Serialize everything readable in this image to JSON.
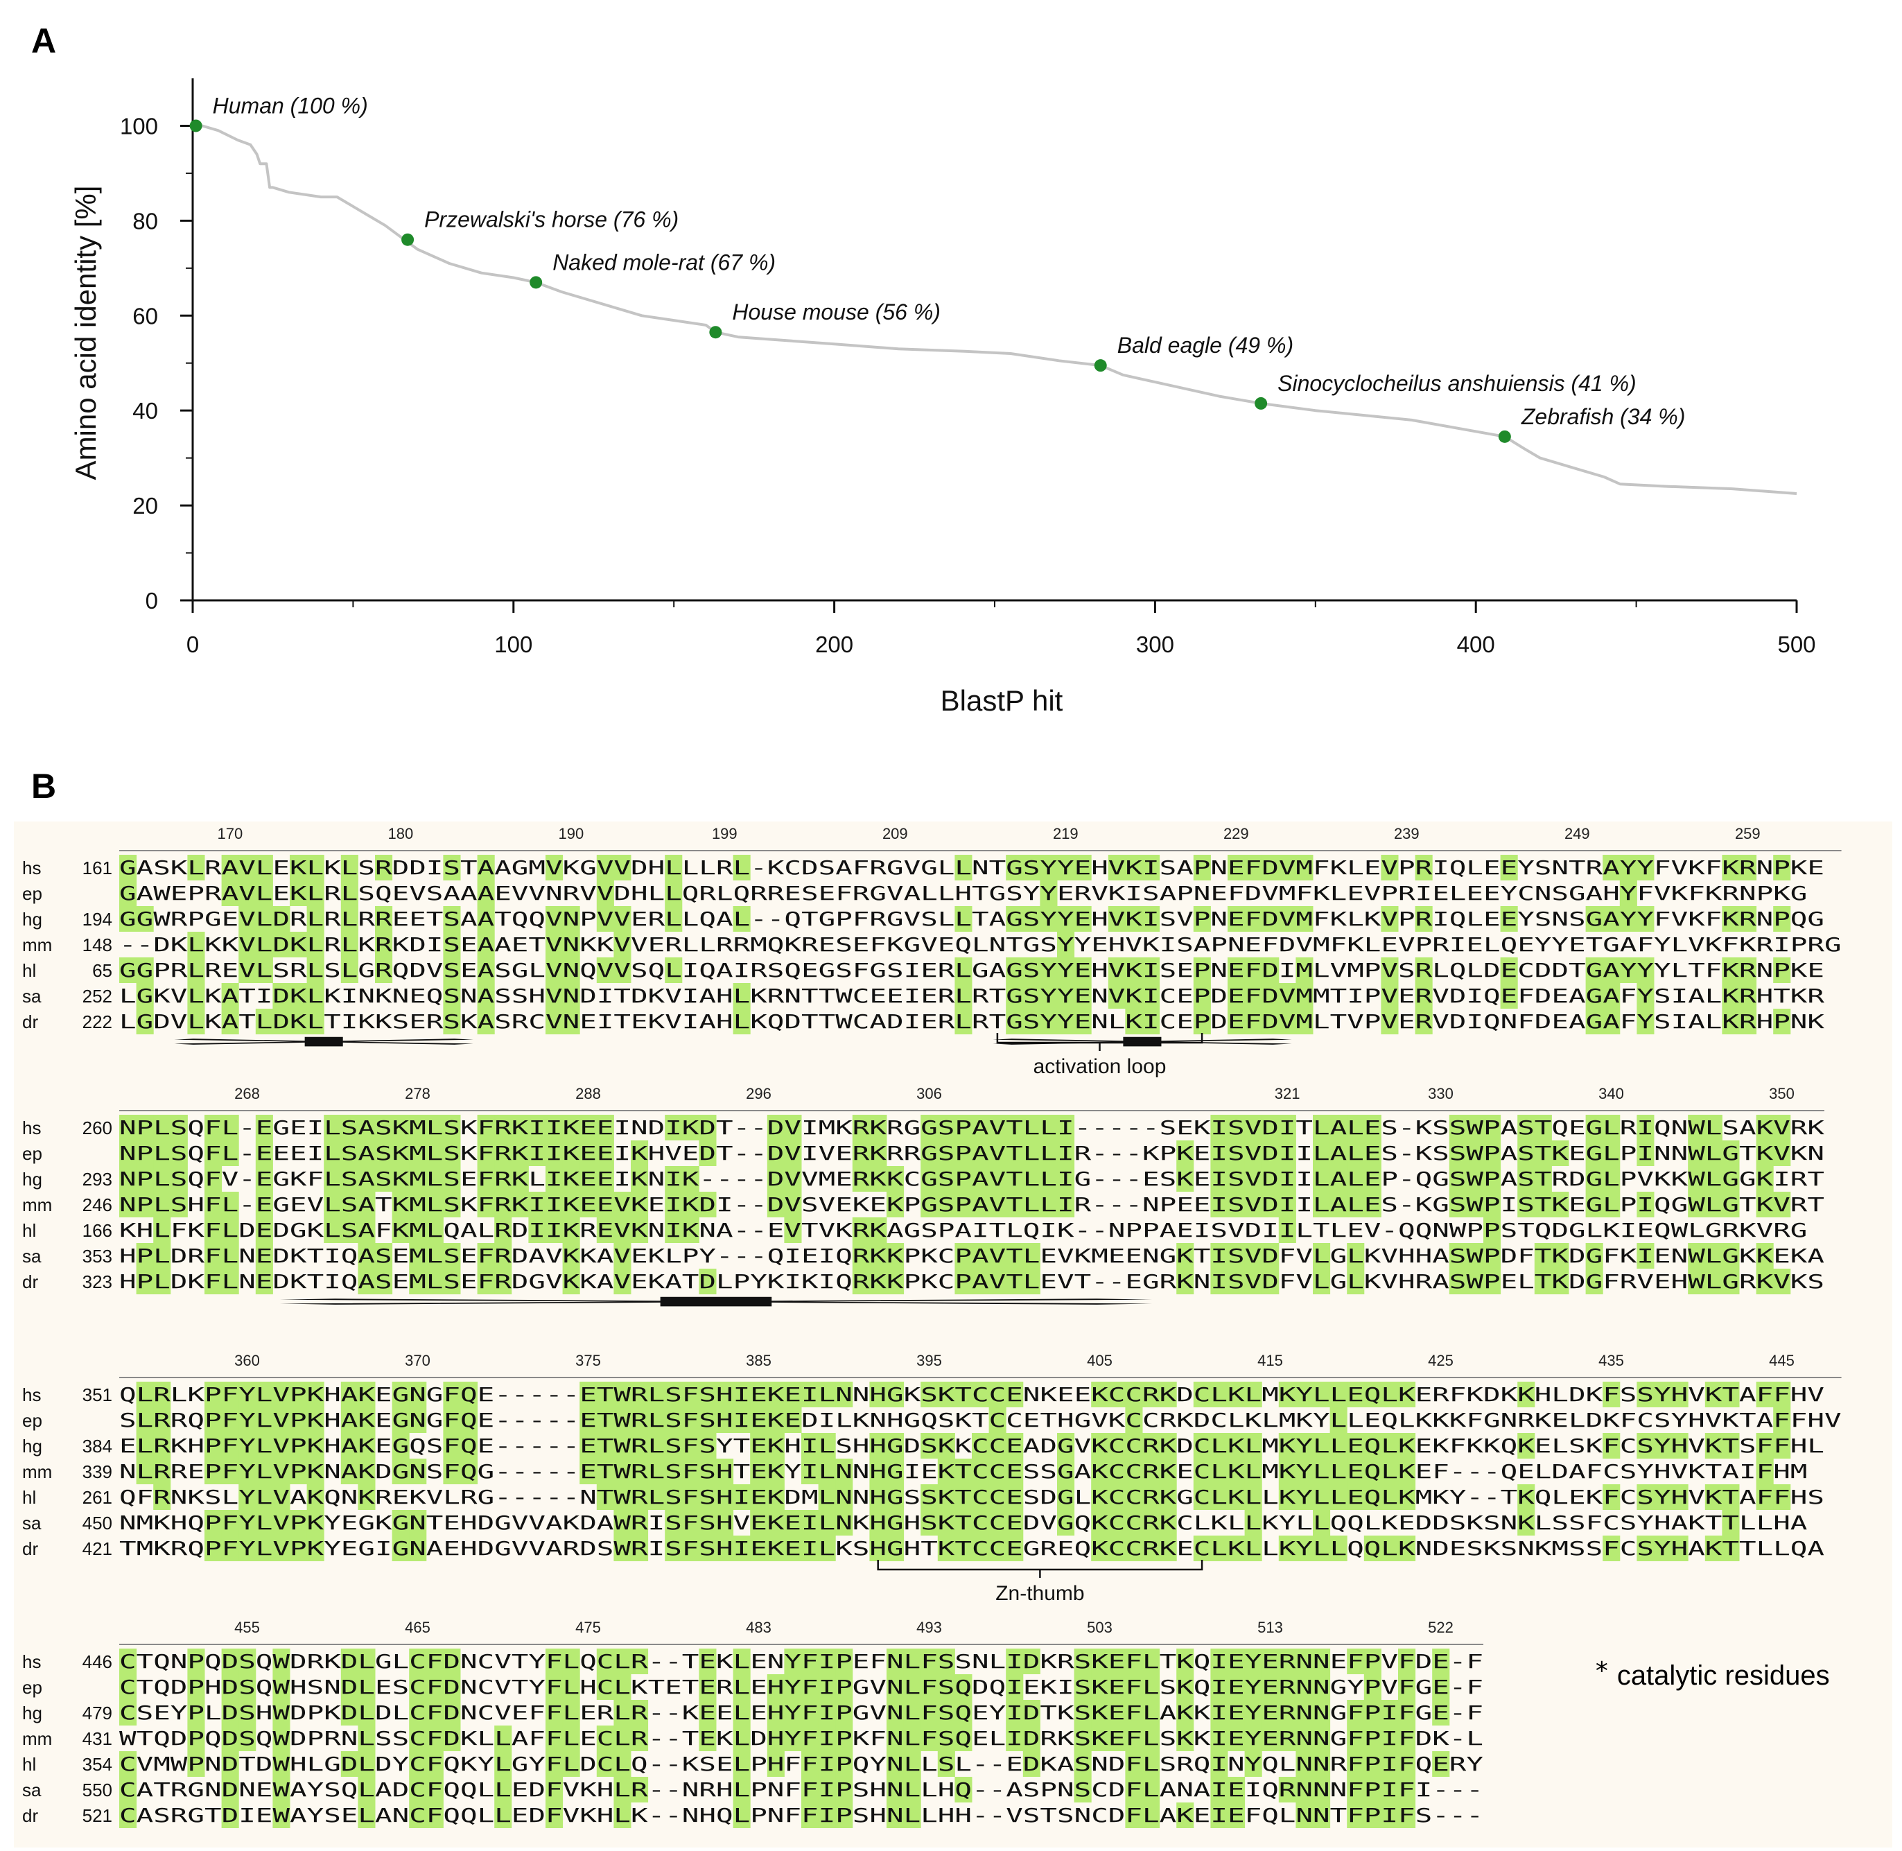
{
  "panels": {
    "a": "A",
    "b": "B"
  },
  "colors": {
    "line": "#c4c4c4",
    "point": "#1f8a2a",
    "highlight": "#b7eb73",
    "background_b": "#fdf9f1"
  },
  "chart_data": {
    "type": "line",
    "xlabel": "BlastP hit",
    "ylabel": "Amino acid identity [%]",
    "xlim": [
      0,
      500
    ],
    "ylim": [
      0,
      110
    ],
    "xticks": [
      0,
      100,
      200,
      300,
      400,
      500
    ],
    "yticks": [
      0,
      20,
      40,
      60,
      80,
      100
    ],
    "grid": false,
    "series": [
      {
        "name": "BlastP hits",
        "x": [
          0,
          3,
          8,
          14,
          18,
          20,
          21,
          23,
          24,
          25,
          30,
          40,
          45,
          50,
          55,
          60,
          66,
          70,
          80,
          90,
          100,
          107,
          115,
          130,
          140,
          150,
          160,
          163,
          170,
          180,
          200,
          220,
          240,
          255,
          270,
          283,
          290,
          300,
          320,
          333,
          350,
          380,
          409,
          415,
          420,
          430,
          440,
          445,
          460,
          480,
          500
        ],
        "y": [
          100,
          100,
          99,
          97,
          96,
          94,
          92,
          92,
          87,
          87,
          86,
          85,
          85,
          83,
          81,
          79,
          76,
          74,
          71,
          69,
          68,
          67,
          65,
          62,
          60,
          59,
          58,
          56.5,
          55.5,
          55,
          54,
          53,
          52.5,
          52,
          50.5,
          49.5,
          47.5,
          46,
          43,
          41.5,
          40,
          38,
          34.5,
          32,
          30,
          28,
          26,
          24.5,
          24,
          23.5,
          22.5
        ]
      }
    ],
    "points": [
      {
        "label": "Human (100 %)",
        "x": 1,
        "y": 100
      },
      {
        "label": "Przewalski's horse (76 %)",
        "x": 67,
        "y": 76
      },
      {
        "label": "Naked mole-rat (67 %)",
        "x": 107,
        "y": 67
      },
      {
        "label": "House mouse (56 %)",
        "x": 163,
        "y": 56.5
      },
      {
        "label": "Bald eagle (49 %)",
        "x": 283,
        "y": 49.5
      },
      {
        "label": "Sinocyclocheilus anshuiensis (41 %)",
        "x": 333,
        "y": 41.5
      },
      {
        "label": "Zebrafish (34 %)",
        "x": 409,
        "y": 34.5
      }
    ]
  },
  "alignment": {
    "species": [
      "hs",
      "ep",
      "hg",
      "mm",
      "hl",
      "sa",
      "dr"
    ],
    "footnote": "catalytic residues",
    "footnote_marker": "*",
    "blocks": [
      {
        "ruler": [
          {
            "col": 7,
            "text": "170"
          },
          {
            "col": 17,
            "text": "180"
          },
          {
            "col": 27,
            "text": "190"
          },
          {
            "col": 36,
            "text": "199"
          },
          {
            "col": 46,
            "text": "209"
          },
          {
            "col": 56,
            "text": "219"
          },
          {
            "col": 66,
            "text": "229"
          },
          {
            "col": 76,
            "text": "239"
          },
          {
            "col": 86,
            "text": "249"
          },
          {
            "col": 96,
            "text": "259"
          }
        ],
        "rows": [
          {
            "id": "hs",
            "start": "161",
            "seq": "GASKLRAVLEKLKLSRDDISTAAGMVKGVVDHLLLRL-KCDSAFRGVGLLNTGSYYEHVKISAPNEFDVMFKLEVPRIQLEEYSNTRAYYFVKFKRNPKE"
          },
          {
            "id": "ep",
            "start": "",
            "seq": "GAWEPRAVLEKLRLSQEVSAAAEVVNRVVDHLLQRLQRRESEFRGVALLHTGSYYERVKISAPNEFDVMFKLEVPRIELEEYCNSGAHYFVKFKRNPKG"
          },
          {
            "id": "hg",
            "start": "194",
            "seq": "GGWRPGEVLDRLRLRREETSAATQQVNPVVERLLQAL--QTGPFRGVSLLTAGSYYEHVKISVPNEFDVMFKLKVPRIQLEEYSNSGAYYFVKFKRNPQG"
          },
          {
            "id": "mm",
            "start": "148",
            "seq": "--DKLKKVLDKLRLKRKDISEAAETVNKKVVERLLRRMQKRESEFKGVEQLNTGSYYEHVKISAPNEFDVMFKLEVPRIELQEYYETGAFYLVKFKRIPRG"
          },
          {
            "id": "hl",
            "start": "65",
            "seq": "GGPRLREVLSRLSLGRQDVSEASGLVNQVVSQLIQAIRSQEGSFGSIERLGAGSYYEHVKISEPNEFDIMLVMPVSRLQLDECDDTGAYYYLTFKRNPKE"
          },
          {
            "id": "sa",
            "start": "252",
            "seq": "LGKVLKATIDKLKINKNEQSNASSHVNDITDKVIAHLKRNTTWCEEIERLRTGSYYENVKICEPDEFDVMMTIPVERVDIQEFDEAGAFYSIALKRHTKR"
          },
          {
            "id": "dr",
            "start": "222",
            "seq": "LGDVLKATLDKLTIKKSERSKASRCVNEITEKVIAHLKQDTTWCADIERLRTGSYYENLKICEPDEFDVMLTVPVERVDIQNFDEAGAFYSIALKRHPNK"
          }
        ],
        "marks": "                                                                   *   *",
        "bracket": {
          "from": 51,
          "to": 63,
          "label": "activation loop"
        }
      },
      {
        "ruler": [
          {
            "col": 8,
            "text": "268"
          },
          {
            "col": 18,
            "text": "278"
          },
          {
            "col": 28,
            "text": "288"
          },
          {
            "col": 38,
            "text": "296"
          },
          {
            "col": 48,
            "text": "306"
          },
          {
            "col": 69,
            "text": "321"
          },
          {
            "col": 78,
            "text": "330"
          },
          {
            "col": 88,
            "text": "340"
          },
          {
            "col": 98,
            "text": "350"
          }
        ],
        "rows": [
          {
            "id": "hs",
            "start": "260",
            "seq": "NPLSQFL-EGEILSASKMLSKFRKIIKEEINDIKDT--DVIMKRKRGGSPAVTLLI-----SEKISVDITLALES-KSSWPASTQEGLRIQNWLSAKVRK"
          },
          {
            "id": "ep",
            "start": "",
            "seq": "NPLSQFL-EEEILSASKMLSKFRKIIKEEIKHVEDT--DVIVERKRRGSPAVTLLIR---KPKEISVDIILALES-KSSWPASTKEGLPINNWLGTKVKN"
          },
          {
            "id": "hg",
            "start": "293",
            "seq": "NPLSQFV-EGKFLSASKMLSEFRKLIKEEIKNIK----DVVMERKKCGSPAVTLLIG---ESKEISVDIILALEP-QGSWPASTRDGLPVKKWLGGKIRT"
          },
          {
            "id": "mm",
            "start": "246",
            "seq": "NPLSHFL-EGEVLSATKMLSKFRKIIKEEVKEIKDI--DVSVEKEKPGSPAVTLLIR---NPEEISVDIILALES-KGSWPISTKEGLPIQGWLGTKVRT"
          },
          {
            "id": "hl",
            "start": "166",
            "seq": "KHLFKFLDEDGKLSAFKMLQALRDIIKREVKNIKNA--EVTVKRKAGSPAITLQIK--NPPAEISVDIILTLEV-QQNWPPSTQDGLKIEQWLGRKVRG"
          },
          {
            "id": "sa",
            "start": "353",
            "seq": "HPLDRFLNEDKTIQASEMLSEFRDAVKKAVEKLPY---QIEIQRKKPKCPAVTLEVKMEENGKTISVDFVLGLKVHHASWPDFTKDGFKIENWLGKKEKA"
          },
          {
            "id": "dr",
            "start": "323",
            "seq": "HPLDKFLNEDKTIQASEMLSEFRDGVKKAVEKATDLPYKIKIQRKKPKCPAVTLEVT--EGRKNISVDFVLGLKVHRASWPELTKDGFRVEHWLGRKVKS"
          }
        ],
        "marks": "                                                                     *",
        "bracket": null
      },
      {
        "ruler": [
          {
            "col": 8,
            "text": "360"
          },
          {
            "col": 18,
            "text": "370"
          },
          {
            "col": 28,
            "text": "375"
          },
          {
            "col": 38,
            "text": "385"
          },
          {
            "col": 48,
            "text": "395"
          },
          {
            "col": 58,
            "text": "405"
          },
          {
            "col": 68,
            "text": "415"
          },
          {
            "col": 78,
            "text": "425"
          },
          {
            "col": 88,
            "text": "435"
          },
          {
            "col": 98,
            "text": "445"
          }
        ],
        "rows": [
          {
            "id": "hs",
            "start": "351",
            "seq": "QLRLKPFYLVPKHAKEGNGFQE-----ETWRLSFSHIEKEILNNHGKSKTCCENKEEKCCRKDCLKLMKYLLEQLKERFKDKKHLDKFSSYHVKTAFFHV"
          },
          {
            "id": "ep",
            "start": "",
            "seq": "SLRRQPFYLVPKHAKEGNGFQE-----ETWRLSFSHIEKEDILKNHGQSKTCCETHGVKCCRKDCLKLMKYLLEQLKKKFGNRKELDKFCSYHVKTAFFHV"
          },
          {
            "id": "hg",
            "start": "384",
            "seq": "ELRKHPFYLVPKHAKEGQSFQE-----ETWRLSFSYTEKHILSHHGDSKKCCEADGVKCCRKDCLKLMKYLLEQLKEKFKKQKELSKFCSYHVKTSFFHL"
          },
          {
            "id": "mm",
            "start": "339",
            "seq": "NLRREPFYLVPKNAKDGNSFQG-----ETWRLSFSHTEKYILNNHGIEKTCCESSGAKCCRKECLKLMKYLLEQLKEF---QELDAFCSYHVKTAIFHM"
          },
          {
            "id": "hl",
            "start": "261",
            "seq": "QFRNKSLYLVAKQNKREKVLRG-----NTWRLSFSHIEKDMLNNHGSSKTCCESDGLKCCRKGCLKLLKYLLEQLKMKY--TKQLEKFCSYHVKTAFFHS"
          },
          {
            "id": "sa",
            "start": "450",
            "seq": "NMKHQPFYLVPKYEGKGNTEHDGVVAKDAWRISFSHVEKEILNKHGHSKTCCEDVGQKCCRKCLKLLKYLLQQLKEDDSKSNKLSSFCSYHAKTTLLHA"
          },
          {
            "id": "dr",
            "start": "421",
            "seq": "TMKRQPFYLVPKYEGIGNAEHDGVVARDSWRISFSHIEKEILKSHGHTKTCCEGREQKCCRKECLKLLKYLLQQLKNDESKSNKMSSFCSYHAKTTLLQA"
          }
        ],
        "marks": "",
        "bracket": {
          "from": 44,
          "to": 63,
          "label": "Zn-thumb"
        }
      },
      {
        "ruler": [
          {
            "col": 8,
            "text": "455"
          },
          {
            "col": 18,
            "text": "465"
          },
          {
            "col": 28,
            "text": "475"
          },
          {
            "col": 38,
            "text": "483"
          },
          {
            "col": 48,
            "text": "493"
          },
          {
            "col": 58,
            "text": "503"
          },
          {
            "col": 68,
            "text": "513"
          },
          {
            "col": 78,
            "text": "522"
          }
        ],
        "rows": [
          {
            "id": "hs",
            "start": "446",
            "seq": "CTQNPQDSQWDRKDLGLCFDNCVTYFLQCLR--TEKLENYFIPEFNLFSSNLIDKRSKEFLTKQIEYERNNEFPVFDE-F"
          },
          {
            "id": "ep",
            "start": "",
            "seq": "CTQDPHDSQWHSNDLESCFDNCVTYFLHCLKTETERLEHYFIPGVNLFSQDQIEKISKEFLSKQIEYERNNGYPVFGE-F"
          },
          {
            "id": "hg",
            "start": "479",
            "seq": "CSEYPLDSHWDPKDLDLCFDNCVEFFLERLR--KEELEHYFIPGVNLFSQEYIDTKSKEFLAKKIEYERNNGFPIFGE-F"
          },
          {
            "id": "mm",
            "start": "431",
            "seq": "WTQDPQDSQWDPRNLSSCFDKLLAFFLECLR--TEKLDHYFIPKFNLFSQELIDRKSKEFLSKKIEYERNNGFPIFDK-L"
          },
          {
            "id": "hl",
            "start": "354",
            "seq": "CVMWPNDTDWHLGDLDYCFQKYLGYFLDCLQ--KSELPHFFIPQYNLLSL--EDKASNDFLSRQINYQLNNRFPIFQERY"
          },
          {
            "id": "sa",
            "start": "550",
            "seq": "CATRGNDNEWAYSQLADCFQQLLEDFVKHLR--NRHLPNFFIPSHNLLHQ--ASPNSCDFLANAIEIQRNNNFPIFI---"
          },
          {
            "id": "dr",
            "start": "521",
            "seq": "CASRGTDIEWAYSELANCFQQLLEDFVKHLK--NHQLPNFFIPSHNLLHH--VSTSNCDFLAKEIEFQLNNTFPIFS---"
          }
        ],
        "marks": "",
        "bracket": null
      }
    ]
  }
}
